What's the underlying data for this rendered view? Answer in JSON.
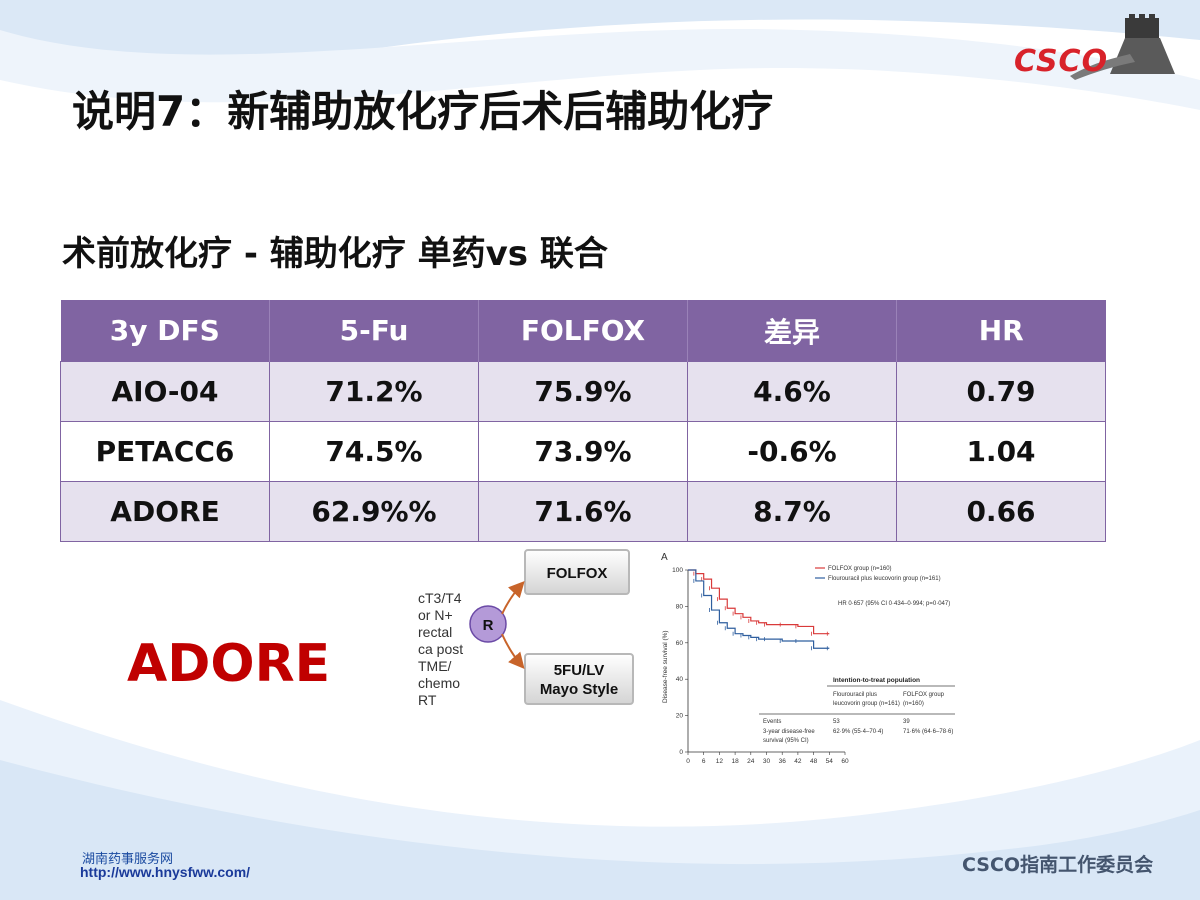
{
  "logo": {
    "text": "CSCO",
    "icon": "great-wall-icon"
  },
  "title": "说明7：新辅助放化疗后术后辅助化疗",
  "subtitle": "术前放化疗 - 辅助化疗 单药vs 联合",
  "table": {
    "headers": [
      "3y DFS",
      "5-Fu",
      "FOLFOX",
      "差异",
      "HR"
    ],
    "rows": [
      [
        "AIO-04",
        "71.2%",
        "75.9%",
        "4.6%",
        "0.79"
      ],
      [
        "PETACC6",
        "74.5%",
        "73.9%",
        "-0.6%",
        "1.04"
      ],
      [
        "ADORE",
        "62.9%%",
        "71.6%",
        "8.7%",
        "0.66"
      ]
    ],
    "colors": {
      "header": "#8064a2",
      "alt_row": "#e6e1ee"
    }
  },
  "adore_label": "ADORE",
  "schema": {
    "patient_lines": [
      "cT3/T4",
      "or N+",
      "rectal",
      "ca post",
      "TME/",
      "chemo",
      "RT"
    ],
    "randomize": "R",
    "arm1": "FOLFOX",
    "arm2_line1": "5FU/LV",
    "arm2_line2": "Mayo Style"
  },
  "km_plot": {
    "panel_label": "A",
    "y_axis_label": "Disease-free survival (%)",
    "y_ticks": [
      "0",
      "20",
      "40",
      "60",
      "80",
      "100"
    ],
    "x_ticks": [
      "0",
      "6",
      "12",
      "18",
      "24",
      "30",
      "36",
      "42",
      "48",
      "54",
      "60"
    ],
    "legend": [
      "FOLFOX group (n=160)",
      "Flourouracil plus leucovorin group (n=161)"
    ],
    "hr_text": "HR 0·657 (95% CI 0·434–0·994; p=0·047)",
    "itt_title": "Intention-to-treat population",
    "col1_line1": "Flourouracil plus",
    "col1_line2": "leucovorin group (n=161)",
    "col2_line1": "FOLFOX group",
    "col2_line2": "(n=160)",
    "events_label": "Events",
    "events_5fu": "53",
    "events_folfox": "39",
    "dfs_label_1": "3-year disease-free",
    "dfs_label_2": "survival (95% CI)",
    "dfs_5fu": "62·9% (55·4–70·4)",
    "dfs_folfox": "71·6% (64·6–78·6)",
    "colors": {
      "folfox": "#d93a3a",
      "fu": "#2f5f9f"
    },
    "series": [
      {
        "name": "FOLFOX group (n=160)",
        "x": [
          0,
          3,
          6,
          9,
          12,
          15,
          18,
          21,
          24,
          27,
          30,
          36,
          42,
          48,
          54
        ],
        "y": [
          100,
          98,
          95,
          90,
          84,
          79,
          76,
          74,
          72,
          71,
          70,
          70,
          69,
          65,
          65
        ]
      },
      {
        "name": "Flourouracil plus leucovorin group (n=161)",
        "x": [
          0,
          3,
          6,
          9,
          12,
          15,
          18,
          21,
          24,
          27,
          30,
          36,
          42,
          48,
          54
        ],
        "y": [
          100,
          94,
          86,
          78,
          71,
          68,
          65,
          64,
          63,
          62,
          62,
          61,
          61,
          57,
          57
        ]
      }
    ],
    "xlim": [
      0,
      60
    ],
    "ylim": [
      0,
      100
    ]
  },
  "footer": {
    "left_cn": "湖南药事服务网",
    "left_url": "http://www.hnysfww.com/",
    "right": "CSCO指南工作委员会"
  }
}
